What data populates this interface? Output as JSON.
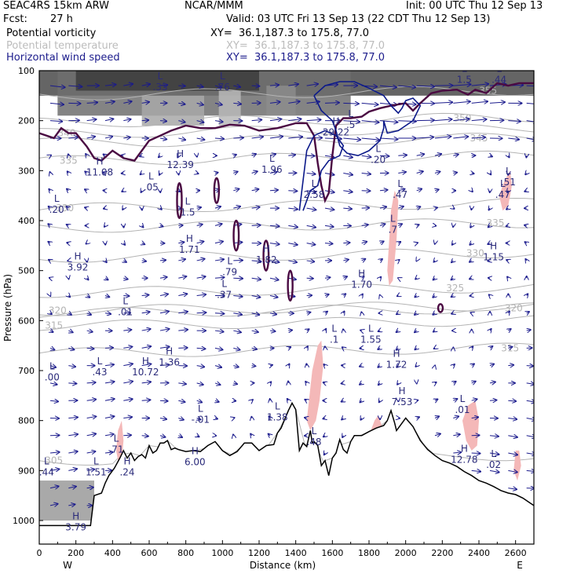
{
  "header": {
    "model": "SEAC4RS 15km ARW",
    "org": "NCAR/MMM",
    "init": "Init: 00 UTC Thu 12 Sep 13",
    "fcst_label": "Fcst:",
    "fcst_value": "27 h",
    "valid": "Valid: 03 UTC Fri 13 Sep 13 (22 CDT Thu 12 Sep 13)"
  },
  "fields": [
    {
      "name": "Potential vorticity",
      "xy": "XY=  36.1,187.3 to 175.8, 77.0",
      "color": "#000000"
    },
    {
      "name": "Potential temperature",
      "xy": "XY=  36.1,187.3 to 175.8, 77.0",
      "color": "#bcbcbc"
    },
    {
      "name": "Horizontal wind speed",
      "xy": "XY=  36.1,187.3 to 175.8, 77.0",
      "color": "#1c1c8c"
    }
  ],
  "chart_data": {
    "type": "cross-section",
    "xlabel": "Distance (km)",
    "ylabel": "Pressure (hPa)",
    "xlim": [
      0,
      2700
    ],
    "ylim": [
      1050,
      100
    ],
    "x_ticks": [
      0,
      200,
      400,
      600,
      800,
      1000,
      1200,
      1400,
      1600,
      1800,
      2000,
      2200,
      2400,
      2600
    ],
    "y_ticks": [
      100,
      200,
      300,
      400,
      500,
      600,
      700,
      800,
      900,
      1000
    ],
    "x_end_labels": [
      "W",
      "E"
    ],
    "colors": {
      "pv_contour": "#4a0a42",
      "wind_contour": "#0c1a8a",
      "theta": "#b4b4b4",
      "vector": "#1a1a8c",
      "pink": "#f4b8b8",
      "ground": "#000000"
    },
    "terrain": [
      [
        0,
        1010
      ],
      [
        280,
        1010
      ],
      [
        300,
        950
      ],
      [
        340,
        945
      ],
      [
        360,
        925
      ],
      [
        380,
        910
      ],
      [
        410,
        895
      ],
      [
        440,
        875
      ],
      [
        460,
        860
      ],
      [
        480,
        875
      ],
      [
        500,
        865
      ],
      [
        520,
        880
      ],
      [
        540,
        872
      ],
      [
        560,
        868
      ],
      [
        580,
        875
      ],
      [
        600,
        850
      ],
      [
        620,
        865
      ],
      [
        640,
        860
      ],
      [
        660,
        845
      ],
      [
        680,
        845
      ],
      [
        700,
        840
      ],
      [
        720,
        858
      ],
      [
        740,
        855
      ],
      [
        760,
        858
      ],
      [
        800,
        862
      ],
      [
        840,
        860
      ],
      [
        880,
        862
      ],
      [
        920,
        850
      ],
      [
        960,
        842
      ],
      [
        1000,
        860
      ],
      [
        1040,
        870
      ],
      [
        1080,
        862
      ],
      [
        1120,
        845
      ],
      [
        1160,
        845
      ],
      [
        1200,
        860
      ],
      [
        1240,
        850
      ],
      [
        1280,
        848
      ],
      [
        1300,
        825
      ],
      [
        1320,
        815
      ],
      [
        1360,
        780
      ],
      [
        1380,
        765
      ],
      [
        1400,
        778
      ],
      [
        1420,
        860
      ],
      [
        1440,
        845
      ],
      [
        1460,
        852
      ],
      [
        1480,
        820
      ],
      [
        1490,
        845
      ],
      [
        1500,
        842
      ],
      [
        1520,
        850
      ],
      [
        1540,
        890
      ],
      [
        1560,
        880
      ],
      [
        1580,
        910
      ],
      [
        1600,
        875
      ],
      [
        1620,
        865
      ],
      [
        1640,
        838
      ],
      [
        1660,
        858
      ],
      [
        1680,
        865
      ],
      [
        1700,
        842
      ],
      [
        1720,
        830
      ],
      [
        1760,
        830
      ],
      [
        1800,
        822
      ],
      [
        1840,
        815
      ],
      [
        1880,
        810
      ],
      [
        1900,
        800
      ],
      [
        1920,
        780
      ],
      [
        1940,
        805
      ],
      [
        1950,
        820
      ],
      [
        1980,
        805
      ],
      [
        2000,
        795
      ],
      [
        2040,
        812
      ],
      [
        2080,
        840
      ],
      [
        2120,
        858
      ],
      [
        2160,
        870
      ],
      [
        2200,
        880
      ],
      [
        2240,
        885
      ],
      [
        2280,
        892
      ],
      [
        2320,
        902
      ],
      [
        2360,
        910
      ],
      [
        2400,
        920
      ],
      [
        2440,
        925
      ],
      [
        2480,
        932
      ],
      [
        2520,
        940
      ],
      [
        2560,
        945
      ],
      [
        2600,
        948
      ],
      [
        2640,
        955
      ],
      [
        2680,
        965
      ],
      [
        2700,
        970
      ]
    ],
    "theta_levels": [
      {
        "label": "305",
        "x": 80,
        "p": 880
      },
      {
        "label": "320",
        "x": 100,
        "p": 580
      },
      {
        "label": "315",
        "x": 80,
        "p": 610
      },
      {
        "label": "330",
        "x": 140,
        "p": 375
      },
      {
        "label": "335",
        "x": 160,
        "p": 280
      },
      {
        "label": "340",
        "x": 150,
        "p": 225
      },
      {
        "label": "335",
        "x": 2490,
        "p": 405
      },
      {
        "label": "330",
        "x": 2380,
        "p": 465
      },
      {
        "label": "325",
        "x": 2270,
        "p": 535
      },
      {
        "label": "320",
        "x": 2590,
        "p": 575
      },
      {
        "label": "315",
        "x": 2570,
        "p": 655
      },
      {
        "label": "345",
        "x": 2400,
        "p": 235
      },
      {
        "label": "350",
        "x": 2310,
        "p": 195
      },
      {
        "label": "355",
        "x": 2450,
        "p": 140
      }
    ],
    "pv_tropopause": [
      [
        0,
        225
      ],
      [
        80,
        235
      ],
      [
        120,
        215
      ],
      [
        160,
        225
      ],
      [
        200,
        225
      ],
      [
        260,
        252
      ],
      [
        300,
        275
      ],
      [
        340,
        280
      ],
      [
        400,
        260
      ],
      [
        460,
        275
      ],
      [
        520,
        280
      ],
      [
        600,
        240
      ],
      [
        660,
        230
      ],
      [
        720,
        220
      ],
      [
        800,
        210
      ],
      [
        880,
        215
      ],
      [
        960,
        215
      ],
      [
        1040,
        208
      ],
      [
        1120,
        210
      ],
      [
        1200,
        220
      ],
      [
        1300,
        215
      ],
      [
        1400,
        205
      ],
      [
        1460,
        205
      ],
      [
        1500,
        230
      ],
      [
        1520,
        285
      ],
      [
        1540,
        330
      ],
      [
        1560,
        360
      ],
      [
        1580,
        345
      ],
      [
        1600,
        270
      ],
      [
        1620,
        210
      ],
      [
        1660,
        195
      ],
      [
        1700,
        195
      ],
      [
        1760,
        192
      ],
      [
        1800,
        182
      ],
      [
        1860,
        175
      ],
      [
        1920,
        170
      ],
      [
        2000,
        165
      ],
      [
        2040,
        180
      ],
      [
        2080,
        165
      ],
      [
        2140,
        145
      ],
      [
        2200,
        140
      ],
      [
        2280,
        138
      ],
      [
        2340,
        148
      ],
      [
        2380,
        138
      ],
      [
        2440,
        145
      ],
      [
        2500,
        125
      ],
      [
        2560,
        130
      ],
      [
        2620,
        125
      ],
      [
        2700,
        125
      ]
    ],
    "wind_contour": [
      [
        1500,
        150
      ],
      [
        1560,
        130
      ],
      [
        1640,
        122
      ],
      [
        1720,
        122
      ],
      [
        1800,
        135
      ],
      [
        1880,
        150
      ],
      [
        1920,
        170
      ],
      [
        1960,
        185
      ],
      [
        1980,
        175
      ],
      [
        2000,
        160
      ],
      [
        2040,
        155
      ],
      [
        2080,
        170
      ],
      [
        2040,
        200
      ],
      [
        1960,
        220
      ],
      [
        1900,
        225
      ],
      [
        1880,
        200
      ],
      [
        1880,
        215
      ],
      [
        1860,
        240
      ],
      [
        1800,
        260
      ],
      [
        1740,
        270
      ],
      [
        1680,
        265
      ],
      [
        1640,
        250
      ],
      [
        1620,
        220
      ],
      [
        1600,
        200
      ],
      [
        1570,
        190
      ],
      [
        1540,
        180
      ],
      [
        1500,
        150
      ]
    ],
    "wind_contour_2": [
      [
        1420,
        380
      ],
      [
        1440,
        320
      ],
      [
        1460,
        260
      ],
      [
        1500,
        230
      ],
      [
        1560,
        220
      ],
      [
        1620,
        230
      ],
      [
        1660,
        250
      ],
      [
        1640,
        270
      ],
      [
        1580,
        280
      ],
      [
        1540,
        300
      ],
      [
        1520,
        330
      ],
      [
        1480,
        340
      ],
      [
        1440,
        380
      ]
    ],
    "pink_regions": [
      [
        [
          420,
          860
        ],
        [
          430,
          820
        ],
        [
          450,
          800
        ],
        [
          460,
          840
        ],
        [
          450,
          880
        ],
        [
          430,
          880
        ]
      ],
      [
        [
          1460,
          800
        ],
        [
          1490,
          700
        ],
        [
          1520,
          650
        ],
        [
          1540,
          640
        ],
        [
          1550,
          690
        ],
        [
          1530,
          760
        ],
        [
          1510,
          800
        ],
        [
          1480,
          820
        ]
      ],
      [
        [
          1810,
          820
        ],
        [
          1830,
          800
        ],
        [
          1850,
          790
        ],
        [
          1870,
          810
        ],
        [
          1860,
          825
        ],
        [
          1830,
          830
        ]
      ],
      [
        [
          1900,
          500
        ],
        [
          1920,
          380
        ],
        [
          1940,
          340
        ],
        [
          1960,
          360
        ],
        [
          1950,
          440
        ],
        [
          1930,
          520
        ],
        [
          1910,
          530
        ]
      ],
      [
        [
          2310,
          800
        ],
        [
          2340,
          770
        ],
        [
          2380,
          760
        ],
        [
          2400,
          800
        ],
        [
          2390,
          850
        ],
        [
          2360,
          860
        ],
        [
          2330,
          840
        ]
      ],
      [
        [
          2510,
          350
        ],
        [
          2540,
          320
        ],
        [
          2570,
          300
        ],
        [
          2580,
          330
        ],
        [
          2560,
          370
        ],
        [
          2530,
          380
        ]
      ],
      [
        [
          2590,
          900
        ],
        [
          2600,
          860
        ],
        [
          2620,
          860
        ],
        [
          2630,
          890
        ],
        [
          2610,
          920
        ]
      ]
    ],
    "pv_blobs": [
      {
        "x": 765,
        "p": 360,
        "rx": 12,
        "rp": 35
      },
      {
        "x": 968,
        "p": 340,
        "rx": 10,
        "rp": 25
      },
      {
        "x": 1075,
        "p": 430,
        "rx": 14,
        "rp": 30
      },
      {
        "x": 1238,
        "p": 470,
        "rx": 14,
        "rp": 30
      },
      {
        "x": 1370,
        "p": 530,
        "rx": 8,
        "rp": 30
      },
      {
        "x": 2190,
        "p": 575,
        "rx": 6,
        "rp": 8
      }
    ],
    "shading": [
      {
        "x0": 0,
        "x1": 2700,
        "p0": 100,
        "p1": 150,
        "color": "#4a4a4a"
      },
      {
        "x0": 100,
        "x1": 1700,
        "p0": 100,
        "p1": 190,
        "color": "#6e6e6e"
      },
      {
        "x0": 200,
        "x1": 1200,
        "p0": 100,
        "p1": 140,
        "color": "#3c3c3c"
      },
      {
        "x0": 560,
        "x1": 900,
        "p0": 150,
        "p1": 210,
        "color": "#a8a8a8"
      },
      {
        "x0": 980,
        "x1": 1100,
        "p0": 140,
        "p1": 210,
        "color": "#b8b8b8"
      },
      {
        "x0": 1240,
        "x1": 1400,
        "p0": 130,
        "p1": 190,
        "color": "#8c8c8c"
      },
      {
        "x0": 0,
        "x1": 300,
        "p0": 920,
        "p1": 1000,
        "color": "#9a9a9a"
      }
    ],
    "extrema": [
      {
        "kind": "H",
        "value": "11.08",
        "x": 330,
        "p": 300
      },
      {
        "kind": "H",
        "value": "12.39",
        "x": 770,
        "p": 285
      },
      {
        "kind": "L",
        "value": "1.96",
        "x": 1270,
        "p": 295
      },
      {
        "kind": "L",
        "value": ".05",
        "x": 610,
        "p": 330
      },
      {
        "kind": "L",
        "value": ".20",
        "x": 95,
        "p": 375
      },
      {
        "kind": "L",
        "value": "1.5",
        "x": 810,
        "p": 380
      },
      {
        "kind": "H",
        "value": "1.71",
        "x": 820,
        "p": 455
      },
      {
        "kind": "H",
        "value": "1.82",
        "x": 1240,
        "p": 475
      },
      {
        "kind": "H",
        "value": "3.92",
        "x": 210,
        "p": 490
      },
      {
        "kind": "L",
        "value": ".79",
        "x": 1040,
        "p": 500
      },
      {
        "kind": "L",
        "value": ".37",
        "x": 1010,
        "p": 545
      },
      {
        "kind": "H",
        "value": "1.70",
        "x": 1760,
        "p": 525
      },
      {
        "kind": "H",
        "value": "1.15",
        "x": 2480,
        "p": 470
      },
      {
        "kind": "L",
        "value": ".01",
        "x": 470,
        "p": 580
      },
      {
        "kind": "L",
        "value": ".1",
        "x": 1610,
        "p": 635
      },
      {
        "kind": "L",
        "value": "1.55",
        "x": 1810,
        "p": 635
      },
      {
        "kind": "H",
        "value": "1.36",
        "x": 710,
        "p": 680
      },
      {
        "kind": "H",
        "value": "10.72",
        "x": 580,
        "p": 700
      },
      {
        "kind": "L",
        "value": ".00",
        "x": 70,
        "p": 710
      },
      {
        "kind": "L",
        "value": ".43",
        "x": 330,
        "p": 700
      },
      {
        "kind": "H",
        "value": "1.72",
        "x": 1950,
        "p": 685
      },
      {
        "kind": "H",
        "value": "7.53",
        "x": 1980,
        "p": 760
      },
      {
        "kind": "L",
        "value": "1.38",
        "x": 1300,
        "p": 790
      },
      {
        "kind": "L",
        "value": "-.01",
        "x": 880,
        "p": 795
      },
      {
        "kind": "L",
        "value": ".48",
        "x": 1500,
        "p": 840
      },
      {
        "kind": "L",
        "value": ".01",
        "x": 2310,
        "p": 775
      },
      {
        "kind": "H",
        "value": "6.00",
        "x": 850,
        "p": 880
      },
      {
        "kind": "H",
        "value": "12.78",
        "x": 2320,
        "p": 875
      },
      {
        "kind": "L",
        "value": ".71",
        "x": 420,
        "p": 855
      },
      {
        "kind": "L",
        "value": ".44",
        "x": 40,
        "p": 900
      },
      {
        "kind": "L",
        "value": "1.51",
        "x": 310,
        "p": 900
      },
      {
        "kind": "H",
        "value": ".24",
        "x": 480,
        "p": 900
      },
      {
        "kind": "L",
        "value": ".02",
        "x": 2480,
        "p": 885
      },
      {
        "kind": "H",
        "value": "3.79",
        "x": 200,
        "p": 1010
      },
      {
        "kind": "L",
        "value": ".33",
        "x": 660,
        "p": 130
      },
      {
        "kind": "L",
        "value": ".76",
        "x": 1000,
        "p": 130
      },
      {
        "kind": "H",
        "value": "29.22",
        "x": 1620,
        "p": 220
      },
      {
        "kind": "L",
        "value": ".5",
        "x": 1700,
        "p": 205
      },
      {
        "kind": "L",
        "value": "2.58",
        "x": 1500,
        "p": 345
      },
      {
        "kind": "L",
        "value": ".20",
        "x": 1850,
        "p": 275
      },
      {
        "kind": "L",
        "value": ".47",
        "x": 1970,
        "p": 345
      },
      {
        "kind": "L",
        "value": ".7",
        "x": 1930,
        "p": 415
      },
      {
        "kind": "L",
        "value": ".51",
        "x": 2560,
        "p": 320
      },
      {
        "kind": "L",
        "value": ".47",
        "x": 2530,
        "p": 345
      },
      {
        "kind": "L",
        "value": "1.5",
        "x": 2320,
        "p": 115
      },
      {
        "kind": "L",
        "value": ".44",
        "x": 2510,
        "p": 115
      }
    ]
  }
}
